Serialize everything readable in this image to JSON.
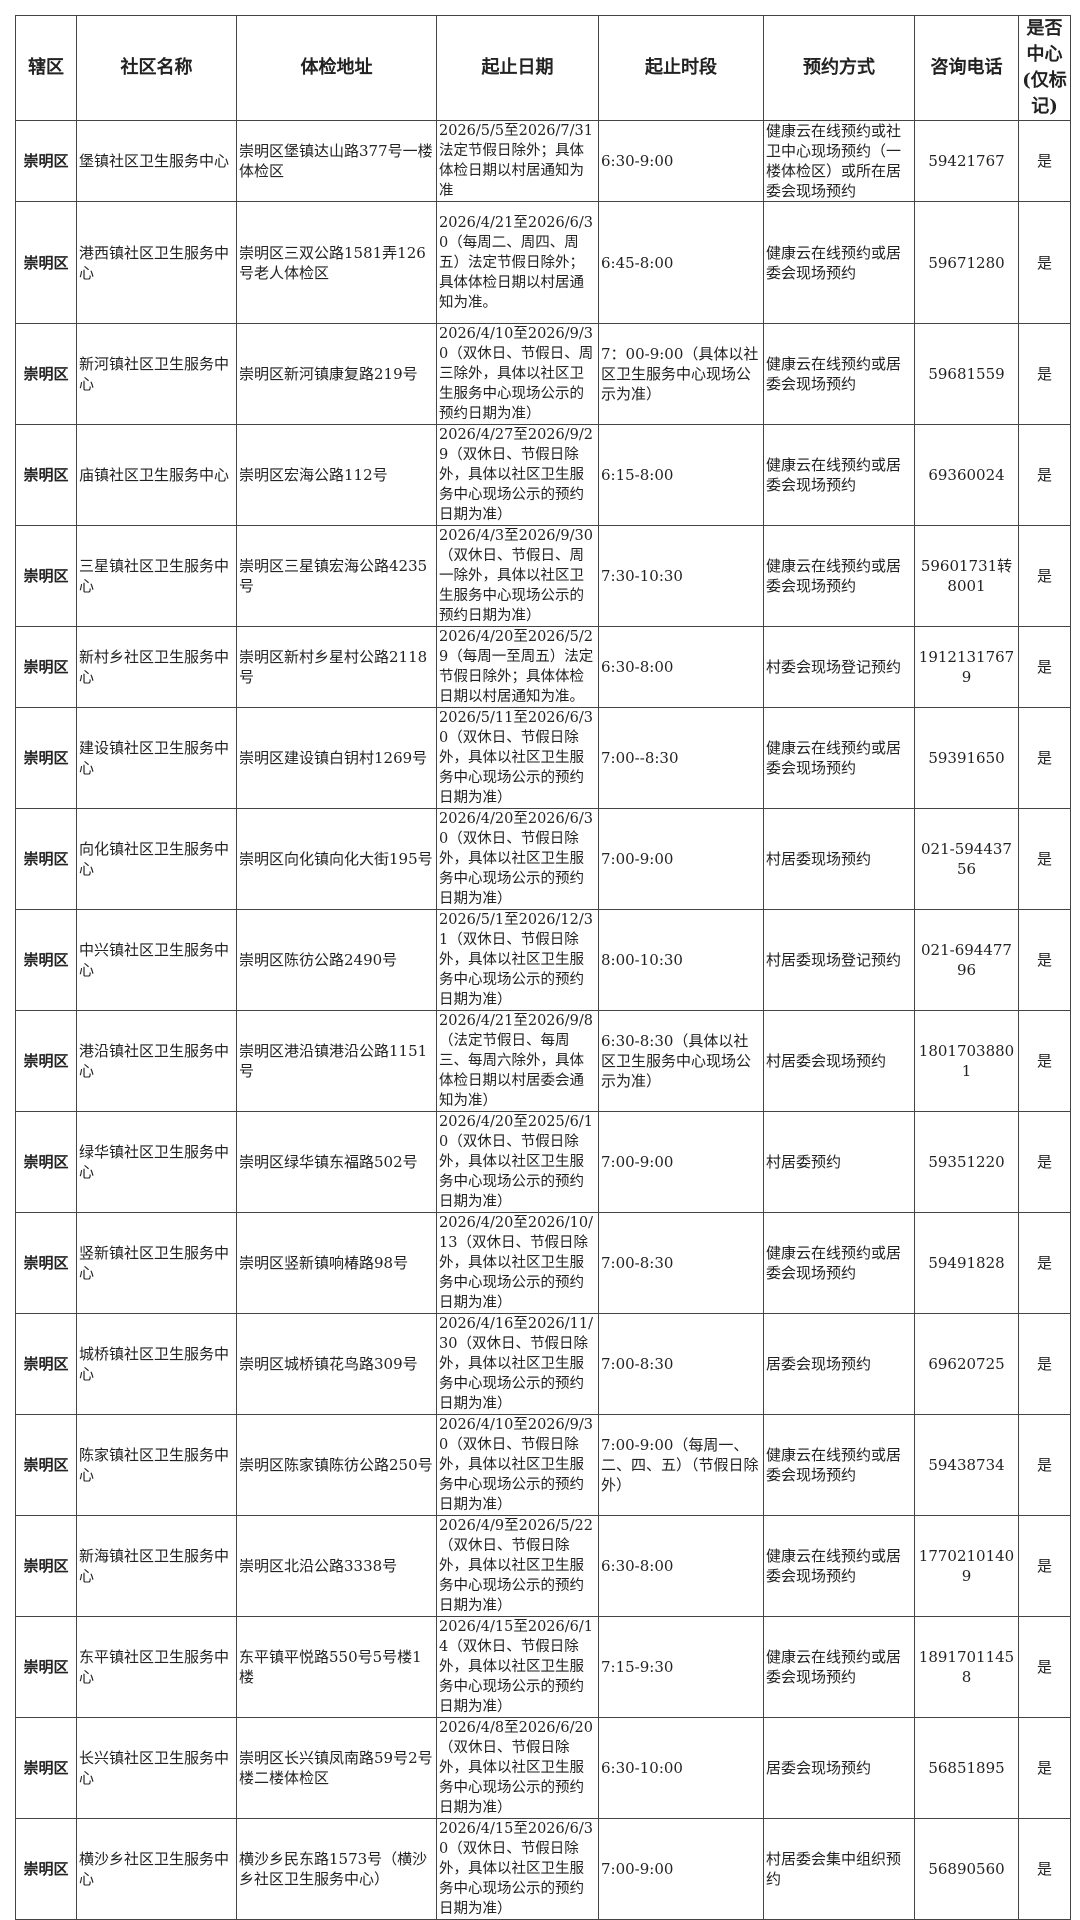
{
  "headers": [
    "辖区",
    "社区名称",
    "体检地址",
    "起止日期",
    "起止时段",
    "预约方式",
    "咨询电话",
    "是否中心(仅标记)"
  ],
  "rows": [
    [
      "崇明区",
      "堡镇社区卫生服务中心",
      "崇明区堡镇达山路377号一楼体检区",
      "2026/5/5至2026/7/31法定节假日除外；具体体检日期以村居通知为准",
      "6:30-9:00",
      "健康云在线预约或社卫中心现场预约（一楼体检区）或所在居委会现场预约",
      "59421767",
      "是"
    ],
    [
      "崇明区",
      "港西镇社区卫生服务中心",
      "崇明区三双公路1581弄126号老人体检区",
      "2026/4/21至2026/6/30（每周二、周四、周五）法定节假日除外；具体体检日期以村居通知为准。",
      "6:45-8:00",
      "健康云在线预约或居委会现场预约",
      "59671280",
      "是"
    ],
    [
      "崇明区",
      "新河镇社区卫生服务中心",
      "崇明区新河镇康复路219号",
      "2026/4/10至2026/9/30（双休日、节假日、周三除外，具体以社区卫生服务中心现场公示的预约日期为准）",
      "7：00-9:00（具体以社区卫生服务中心现场公示为准）",
      "健康云在线预约或居委会现场预约",
      "59681559",
      "是"
    ],
    [
      "崇明区",
      "庙镇社区卫生服务中心",
      "崇明区宏海公路112号",
      "2026/4/27至2026/9/29（双休日、节假日除外，具体以社区卫生服务中心现场公示的预约日期为准）",
      "6:15-8:00",
      "健康云在线预约或居委会现场预约",
      "69360024",
      "是"
    ],
    [
      "崇明区",
      "三星镇社区卫生服务中心",
      "崇明区三星镇宏海公路4235号",
      "2026/4/3至2026/9/30（双休日、节假日、周一除外，具体以社区卫生服务中心现场公示的预约日期为准）",
      "7:30-10:30",
      "健康云在线预约或居委会现场预约",
      "59601731转8001",
      "是"
    ],
    [
      "崇明区",
      "新村乡社区卫生服务中心",
      "崇明区新村乡星村公路2118号",
      "2026/4/20至2026/5/29（每周一至周五）法定节假日除外；具体体检日期以村居通知为准。",
      "6:30-8:00",
      "村委会现场登记预约",
      "19121317679",
      "是"
    ],
    [
      "崇明区",
      "建设镇社区卫生服务中心",
      "崇明区建设镇白钥村1269号",
      "2026/5/11至2026/6/30（双休日、节假日除外，具体以社区卫生服务中心现场公示的预约日期为准）",
      "7:00--8:30",
      "健康云在线预约或居委会现场预约",
      "59391650",
      "是"
    ],
    [
      "崇明区",
      "向化镇社区卫生服务中心",
      "崇明区向化镇向化大街195号",
      "2026/4/20至2026/6/30（双休日、节假日除外，具体以社区卫生服务中心现场公示的预约日期为准）",
      "7:00-9:00",
      "村居委现场预约",
      "021-59443756",
      "是"
    ],
    [
      "崇明区",
      "中兴镇社区卫生服务中心",
      "崇明区陈彷公路2490号",
      "2026/5/1至2026/12/31（双休日、节假日除外，具体以社区卫生服务中心现场公示的预约日期为准）",
      "8:00-10:30",
      "村居委现场登记预约",
      "021-69447796",
      "是"
    ],
    [
      "崇明区",
      "港沿镇社区卫生服务中心",
      "崇明区港沿镇港沿公路1151号",
      "2026/4/21至2026/9/8（法定节假日、每周三、每周六除外，具体体检日期以村居委会通知为准）",
      "6:30-8:30（具体以社区卫生服务中心现场公示为准）",
      "村居委会现场预约",
      "18017038801",
      "是"
    ],
    [
      "崇明区",
      "绿华镇社区卫生服务中心",
      "崇明区绿华镇东福路502号",
      "2026/4/20至2025/6/10（双休日、节假日除外，具体以社区卫生服务中心现场公示的预约日期为准）",
      "7:00-9:00",
      "村居委预约",
      "59351220",
      "是"
    ],
    [
      "崇明区",
      "竖新镇社区卫生服务中心",
      "崇明区竖新镇响椿路98号",
      "2026/4/20至2026/10/13（双休日、节假日除外，具体以社区卫生服务中心现场公示的预约日期为准）",
      "7:00-8:30",
      "健康云在线预约或居委会现场预约",
      "59491828",
      "是"
    ],
    [
      "崇明区",
      "城桥镇社区卫生服务中心",
      "崇明区城桥镇花鸟路309号",
      "2026/4/16至2026/11/30（双休日、节假日除外，具体以社区卫生服务中心现场公示的预约日期为准）",
      "7:00-8:30",
      "居委会现场预约",
      "69620725",
      "是"
    ],
    [
      "崇明区",
      "陈家镇社区卫生服务中心",
      "崇明区陈家镇陈彷公路250号",
      "2026/4/10至2026/9/30（双休日、节假日除外，具体以社区卫生服务中心现场公示的预约日期为准）",
      "7:00-9:00（每周一、二、四、五）（节假日除外）",
      "健康云在线预约或居委会现场预约",
      "59438734",
      "是"
    ],
    [
      "崇明区",
      "新海镇社区卫生服务中心",
      "崇明区北沿公路3338号",
      "2026/4/9至2026/5/22（双休日、节假日除外，具体以社区卫生服务中心现场公示的预约日期为准）",
      "6:30-8:00",
      "健康云在线预约或居委会现场预约",
      "17702101409",
      "是"
    ],
    [
      "崇明区",
      "东平镇社区卫生服务中心",
      "东平镇平悦路550号5号楼1楼",
      "2026/4/15至2026/6/14（双休日、节假日除外，具体以社区卫生服务中心现场公示的预约日期为准）",
      "7:15-9:30",
      "健康云在线预约或居委会现场预约",
      "18917011458",
      "是"
    ],
    [
      "崇明区",
      "长兴镇社区卫生服务中心",
      "崇明区长兴镇凤南路59号2号楼二楼体检区",
      "2026/4/8至2026/6/20（双休日、节假日除外，具体以社区卫生服务中心现场公示的预约日期为准）",
      "6:30-10:00",
      "居委会现场预约",
      "56851895",
      "是"
    ],
    [
      "崇明区",
      "横沙乡社区卫生服务中心",
      "横沙乡民东路1573号（横沙乡社区卫生服务中心）",
      "2026/4/15至2026/6/30（双休日、节假日除外，具体以社区卫生服务中心现场公示的预约日期为准）",
      "7:00-9:00",
      "村居委会集中组织预约",
      "56890560",
      "是"
    ]
  ]
}
